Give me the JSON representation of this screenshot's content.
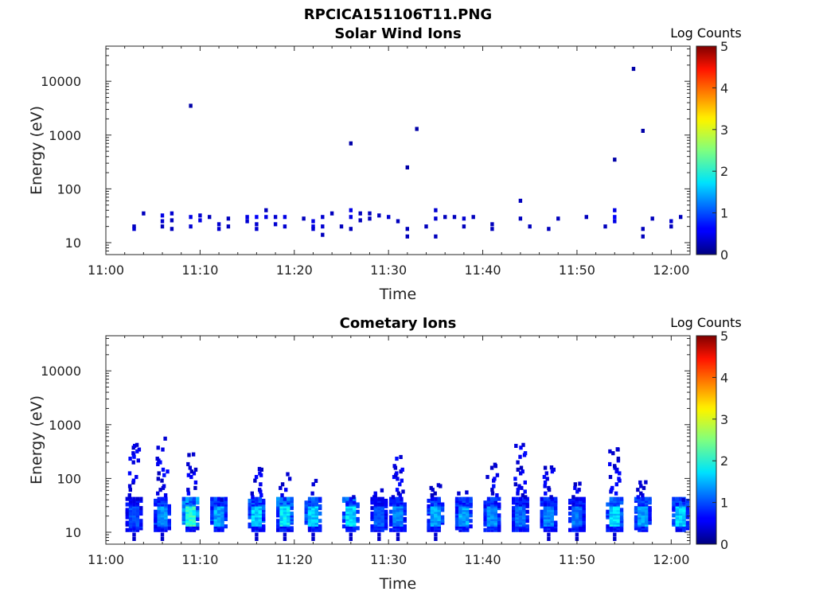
{
  "figure_title": "RPCICA151106T11.PNG",
  "chart_data": [
    {
      "type": "heatmap",
      "title": "Solar Wind Ions",
      "xlabel": "Time",
      "ylabel": "Energy (eV)",
      "x_ticks": [
        "11:00",
        "11:10",
        "11:20",
        "11:30",
        "11:40",
        "11:50",
        "12:00"
      ],
      "xlim": [
        "11:00",
        "12:02"
      ],
      "y_scale": "log",
      "y_ticks": [
        "10",
        "100",
        "1000",
        "10000"
      ],
      "ylim": [
        6,
        45000
      ],
      "colorbar": {
        "label": "Log Counts",
        "min": 0,
        "max": 5,
        "ticks": [
          "0",
          "1",
          "2",
          "3",
          "4",
          "5"
        ]
      },
      "grid": false,
      "cells": [
        {
          "t": "11:03",
          "e": 20,
          "c": 0.3
        },
        {
          "t": "11:03",
          "e": 18,
          "c": 0.4
        },
        {
          "t": "11:04",
          "e": 35,
          "c": 0.3
        },
        {
          "t": "11:06",
          "e": 32,
          "c": 0.5
        },
        {
          "t": "11:06",
          "e": 25,
          "c": 0.4
        },
        {
          "t": "11:06",
          "e": 20,
          "c": 0.3
        },
        {
          "t": "11:07",
          "e": 35,
          "c": 0.4
        },
        {
          "t": "11:07",
          "e": 26,
          "c": 0.3
        },
        {
          "t": "11:07",
          "e": 18,
          "c": 0.3
        },
        {
          "t": "11:09",
          "e": 3500,
          "c": 0.2
        },
        {
          "t": "11:09",
          "e": 30,
          "c": 0.5
        },
        {
          "t": "11:09",
          "e": 20,
          "c": 0.4
        },
        {
          "t": "11:10",
          "e": 32,
          "c": 0.4
        },
        {
          "t": "11:10",
          "e": 26,
          "c": 0.5
        },
        {
          "t": "11:11",
          "e": 30,
          "c": 0.3
        },
        {
          "t": "11:12",
          "e": 22,
          "c": 0.4
        },
        {
          "t": "11:12",
          "e": 18,
          "c": 0.4
        },
        {
          "t": "11:13",
          "e": 28,
          "c": 0.3
        },
        {
          "t": "11:13",
          "e": 20,
          "c": 0.3
        },
        {
          "t": "11:15",
          "e": 30,
          "c": 0.5
        },
        {
          "t": "11:15",
          "e": 25,
          "c": 0.4
        },
        {
          "t": "11:16",
          "e": 30,
          "c": 0.6
        },
        {
          "t": "11:16",
          "e": 22,
          "c": 0.4
        },
        {
          "t": "11:16",
          "e": 18,
          "c": 0.4
        },
        {
          "t": "11:17",
          "e": 40,
          "c": 0.3
        },
        {
          "t": "11:17",
          "e": 30,
          "c": 0.5
        },
        {
          "t": "11:18",
          "e": 30,
          "c": 0.4
        },
        {
          "t": "11:18",
          "e": 22,
          "c": 0.4
        },
        {
          "t": "11:19",
          "e": 30,
          "c": 0.5
        },
        {
          "t": "11:19",
          "e": 20,
          "c": 0.4
        },
        {
          "t": "11:21",
          "e": 28,
          "c": 0.3
        },
        {
          "t": "11:22",
          "e": 25,
          "c": 0.5
        },
        {
          "t": "11:22",
          "e": 20,
          "c": 0.5
        },
        {
          "t": "11:22",
          "e": 18,
          "c": 0.4
        },
        {
          "t": "11:23",
          "e": 30,
          "c": 0.4
        },
        {
          "t": "11:23",
          "e": 20,
          "c": 0.4
        },
        {
          "t": "11:23",
          "e": 14,
          "c": 0.3
        },
        {
          "t": "11:24",
          "e": 35,
          "c": 0.3
        },
        {
          "t": "11:25",
          "e": 20,
          "c": 0.3
        },
        {
          "t": "11:26",
          "e": 700,
          "c": 0.2
        },
        {
          "t": "11:26",
          "e": 40,
          "c": 0.5
        },
        {
          "t": "11:26",
          "e": 30,
          "c": 0.5
        },
        {
          "t": "11:26",
          "e": 18,
          "c": 0.3
        },
        {
          "t": "11:27",
          "e": 35,
          "c": 0.3
        },
        {
          "t": "11:27",
          "e": 26,
          "c": 0.3
        },
        {
          "t": "11:28",
          "e": 35,
          "c": 0.3
        },
        {
          "t": "11:28",
          "e": 28,
          "c": 0.3
        },
        {
          "t": "11:29",
          "e": 32,
          "c": 0.3
        },
        {
          "t": "11:30",
          "e": 30,
          "c": 0.4
        },
        {
          "t": "11:31",
          "e": 25,
          "c": 0.3
        },
        {
          "t": "11:32",
          "e": 250,
          "c": 0.2
        },
        {
          "t": "11:32",
          "e": 18,
          "c": 0.3
        },
        {
          "t": "11:32",
          "e": 13,
          "c": 0.3
        },
        {
          "t": "11:33",
          "e": 1300,
          "c": 0.2
        },
        {
          "t": "11:34",
          "e": 20,
          "c": 0.3
        },
        {
          "t": "11:35",
          "e": 40,
          "c": 0.4
        },
        {
          "t": "11:35",
          "e": 28,
          "c": 0.4
        },
        {
          "t": "11:35",
          "e": 13,
          "c": 0.3
        },
        {
          "t": "11:36",
          "e": 30,
          "c": 0.3
        },
        {
          "t": "11:37",
          "e": 30,
          "c": 0.3
        },
        {
          "t": "11:38",
          "e": 28,
          "c": 0.4
        },
        {
          "t": "11:38",
          "e": 20,
          "c": 0.3
        },
        {
          "t": "11:39",
          "e": 30,
          "c": 0.3
        },
        {
          "t": "11:41",
          "e": 22,
          "c": 0.3
        },
        {
          "t": "11:41",
          "e": 18,
          "c": 0.3
        },
        {
          "t": "11:44",
          "e": 60,
          "c": 0.3
        },
        {
          "t": "11:44",
          "e": 28,
          "c": 0.3
        },
        {
          "t": "11:45",
          "e": 20,
          "c": 0.3
        },
        {
          "t": "11:47",
          "e": 18,
          "c": 0.3
        },
        {
          "t": "11:48",
          "e": 28,
          "c": 0.3
        },
        {
          "t": "11:51",
          "e": 30,
          "c": 0.3
        },
        {
          "t": "11:53",
          "e": 20,
          "c": 0.3
        },
        {
          "t": "11:54",
          "e": 350,
          "c": 0.2
        },
        {
          "t": "11:54",
          "e": 40,
          "c": 0.5
        },
        {
          "t": "11:54",
          "e": 30,
          "c": 0.6
        },
        {
          "t": "11:54",
          "e": 25,
          "c": 0.5
        },
        {
          "t": "11:56",
          "e": 17000,
          "c": 0.2
        },
        {
          "t": "11:57",
          "e": 1200,
          "c": 0.2
        },
        {
          "t": "11:57",
          "e": 18,
          "c": 0.3
        },
        {
          "t": "11:57",
          "e": 13,
          "c": 0.3
        },
        {
          "t": "11:58",
          "e": 28,
          "c": 0.3
        },
        {
          "t": "12:00",
          "e": 25,
          "c": 0.4
        },
        {
          "t": "12:00",
          "e": 20,
          "c": 0.3
        },
        {
          "t": "12:01",
          "e": 30,
          "c": 0.3
        }
      ]
    },
    {
      "type": "heatmap",
      "title": "Cometary Ions",
      "xlabel": "Time",
      "ylabel": "Energy (eV)",
      "x_ticks": [
        "11:00",
        "11:10",
        "11:20",
        "11:30",
        "11:40",
        "11:50",
        "12:00"
      ],
      "xlim": [
        "11:00",
        "12:02"
      ],
      "y_scale": "log",
      "y_ticks": [
        "10",
        "100",
        "1000",
        "10000"
      ],
      "ylim": [
        6,
        45000
      ],
      "colorbar": {
        "label": "Log Counts",
        "min": 0,
        "max": 5,
        "ticks": [
          "0",
          "1",
          "2",
          "3",
          "4",
          "5"
        ]
      },
      "grid": false,
      "bursts": [
        {
          "t": "11:03",
          "c": 1.1,
          "top": 420
        },
        {
          "t": "11:06",
          "c": 1.5,
          "top": 550
        },
        {
          "t": "11:09",
          "c": 2.3,
          "top": 280
        },
        {
          "t": "11:12",
          "c": 1.6,
          "top": 40
        },
        {
          "t": "11:16",
          "c": 1.8,
          "top": 150
        },
        {
          "t": "11:19",
          "c": 2.0,
          "top": 120
        },
        {
          "t": "11:22",
          "c": 1.8,
          "top": 90
        },
        {
          "t": "11:26",
          "c": 1.9,
          "top": 45
        },
        {
          "t": "11:29",
          "c": 1.2,
          "top": 60
        },
        {
          "t": "11:31",
          "c": 1.4,
          "top": 250
        },
        {
          "t": "11:35",
          "c": 1.6,
          "top": 75
        },
        {
          "t": "11:38",
          "c": 1.6,
          "top": 55
        },
        {
          "t": "11:41",
          "c": 1.5,
          "top": 180
        },
        {
          "t": "11:44",
          "c": 1.3,
          "top": 420
        },
        {
          "t": "11:47",
          "c": 1.4,
          "top": 160
        },
        {
          "t": "11:50",
          "c": 1.3,
          "top": 80
        },
        {
          "t": "11:54",
          "c": 1.9,
          "top": 350
        },
        {
          "t": "11:57",
          "c": 1.6,
          "top": 85
        },
        {
          "t": "12:01",
          "c": 1.8,
          "top": 40
        }
      ]
    }
  ]
}
